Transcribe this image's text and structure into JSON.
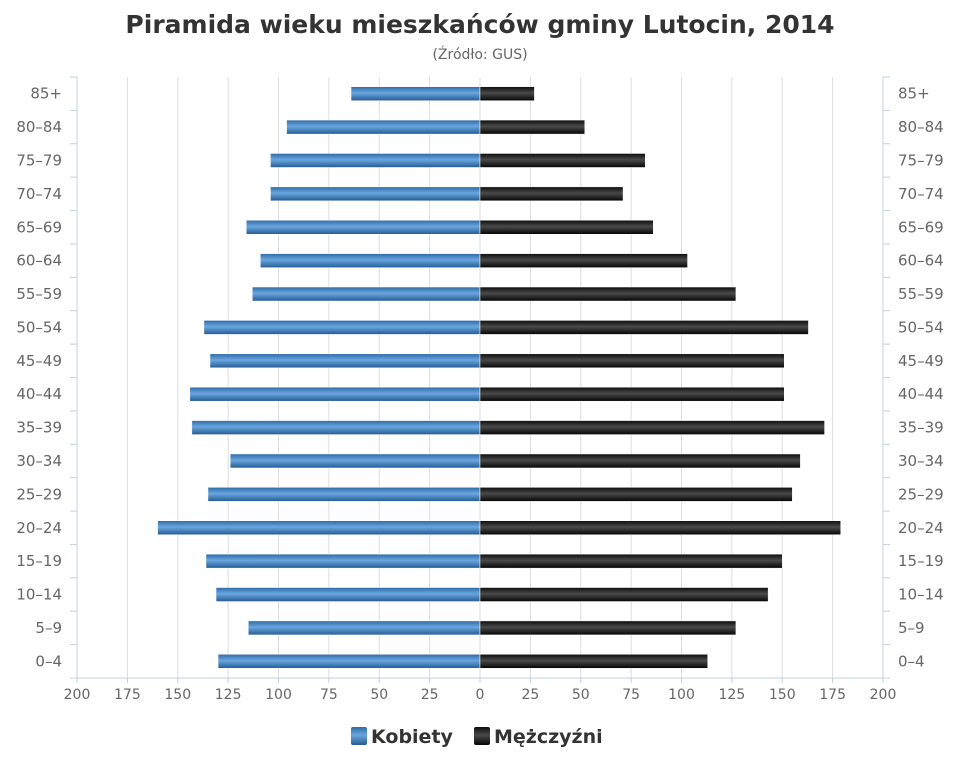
{
  "chart_data": {
    "type": "bar",
    "orientation": "horizontal",
    "title": "Piramida wieku mieszkańców gminy Lutocin, 2014",
    "subtitle": "(Źródło: GUS)",
    "categories": [
      "85+",
      "80-84",
      "75-79",
      "70-74",
      "65-69",
      "60-64",
      "55-59",
      "50-54",
      "45-49",
      "40-44",
      "35-39",
      "30-34",
      "25-29",
      "20-24",
      "15-19",
      "10-14",
      "5-9",
      "0-4"
    ],
    "category_labels": [
      "85+",
      "80–84",
      "75–79",
      "70–74",
      "65–69",
      "60–64",
      "55–59",
      "50–54",
      "45–49",
      "40–44",
      "35–39",
      "30–34",
      "25–29",
      "20–24",
      "15–19",
      "10–14",
      "5–9",
      "0–4"
    ],
    "series": [
      {
        "name": "Kobiety",
        "side": "left",
        "color": "#3a7bbf",
        "values": [
          64,
          96,
          104,
          104,
          116,
          109,
          113,
          137,
          134,
          144,
          143,
          124,
          135,
          160,
          136,
          131,
          115,
          130
        ]
      },
      {
        "name": "Mężczyźni",
        "side": "right",
        "color": "#1a1a1a",
        "values": [
          27,
          52,
          82,
          71,
          86,
          103,
          127,
          163,
          151,
          151,
          171,
          159,
          155,
          179,
          150,
          143,
          127,
          113
        ]
      }
    ],
    "xlim": [
      -200,
      200
    ],
    "x_ticks": [
      -200,
      -175,
      -150,
      -125,
      -100,
      -75,
      -50,
      -25,
      0,
      25,
      50,
      75,
      100,
      125,
      150,
      175,
      200
    ],
    "x_tick_labels": [
      "200",
      "175",
      "150",
      "125",
      "100",
      "75",
      "50",
      "25",
      "0",
      "25",
      "50",
      "75",
      "100",
      "125",
      "150",
      "175",
      "200"
    ],
    "grid": true,
    "legend": "bottom-center"
  }
}
